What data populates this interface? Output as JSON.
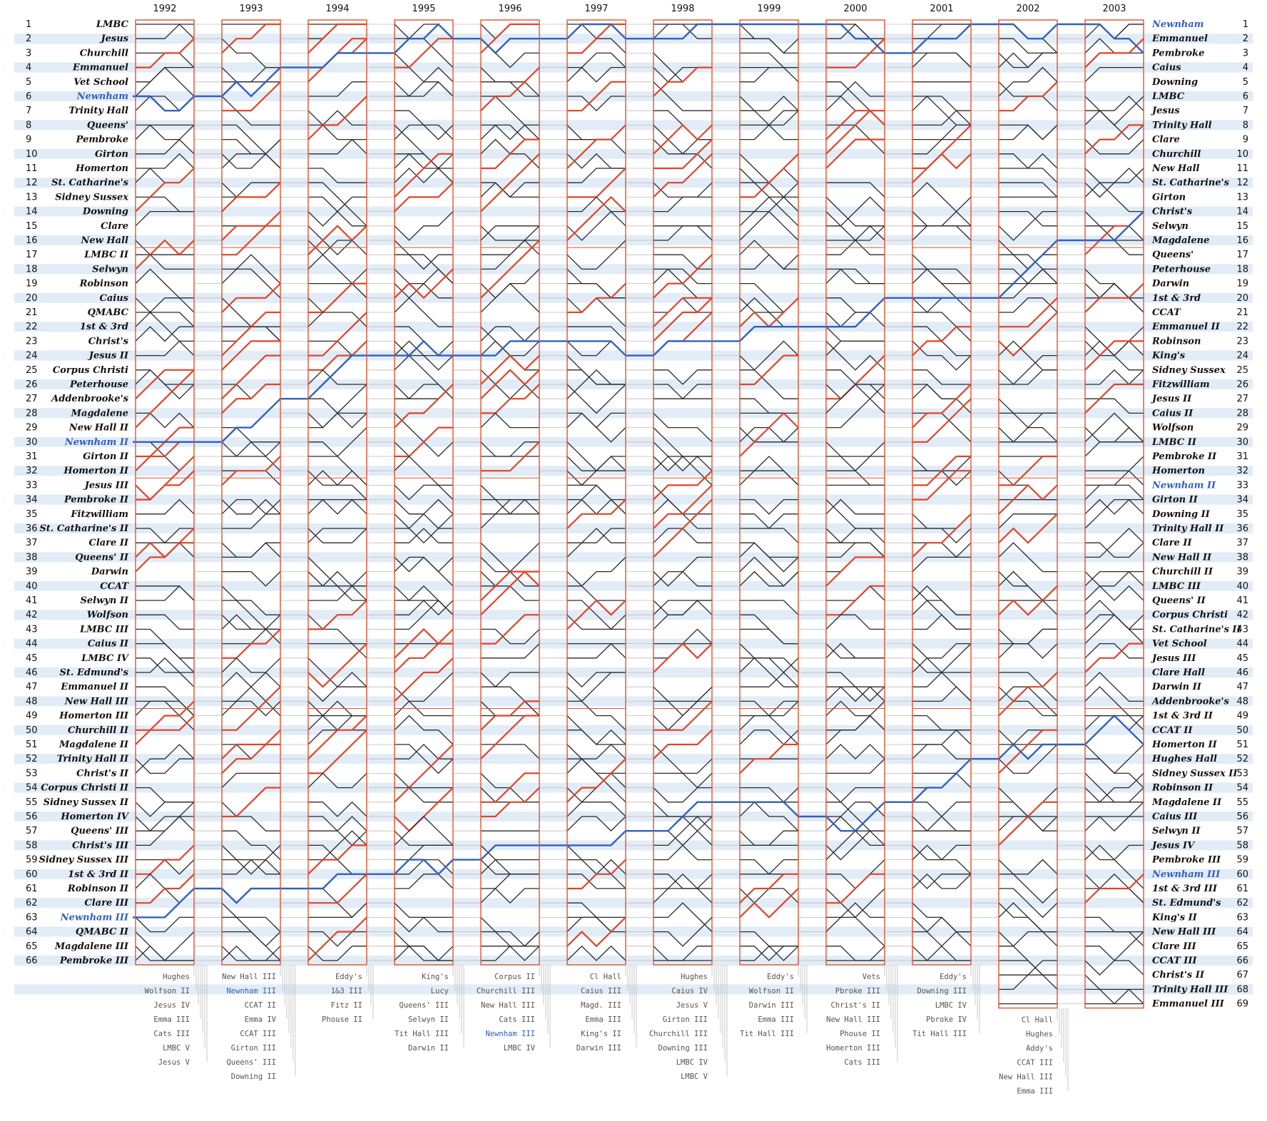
{
  "chart_data": {
    "type": "line",
    "years": [
      "1992",
      "1993",
      "1994",
      "1995",
      "1996",
      "1997",
      "1998",
      "1999",
      "2000",
      "2001",
      "2002",
      "2003"
    ],
    "left_positions": 66,
    "right_positions": 69,
    "left_labels": [
      "LMBC",
      "Jesus",
      "Churchill",
      "Emmanuel",
      "Vet School",
      "Newnham",
      "Trinity Hall",
      "Queens'",
      "Pembroke",
      "Girton",
      "Homerton",
      "St. Catharine's",
      "Sidney Sussex",
      "Downing",
      "Clare",
      "New Hall",
      "LMBC II",
      "Selwyn",
      "Robinson",
      "Caius",
      "QMABC",
      "1st & 3rd",
      "Christ's",
      "Jesus II",
      "Corpus Christi",
      "Peterhouse",
      "Addenbrooke's",
      "Magdalene",
      "New Hall II",
      "Newnham II",
      "Girton II",
      "Homerton II",
      "Jesus III",
      "Pembroke II",
      "Fitzwilliam",
      "St. Catharine's II",
      "Clare II",
      "Queens' II",
      "Darwin",
      "CCAT",
      "Selwyn II",
      "Wolfson",
      "LMBC III",
      "Caius II",
      "LMBC IV",
      "St. Edmund's",
      "Emmanuel II",
      "New Hall III",
      "Homerton III",
      "Churchill II",
      "Magdalene II",
      "Trinity Hall II",
      "Christ's II",
      "Corpus Christi II",
      "Sidney Sussex II",
      "Homerton IV",
      "Queens' III",
      "Christ's III",
      "Sidney Sussex III",
      "1st & 3rd II",
      "Robinson II",
      "Clare III",
      "Newnham III",
      "QMABC II",
      "Magdalene III",
      "Pembroke III"
    ],
    "right_labels": [
      "Newnham",
      "Emmanuel",
      "Pembroke",
      "Caius",
      "Downing",
      "LMBC",
      "Jesus",
      "Trinity Hall",
      "Clare",
      "Churchill",
      "New Hall",
      "St. Catharine's",
      "Girton",
      "Christ's",
      "Selwyn",
      "Magdalene",
      "Queens'",
      "Peterhouse",
      "Darwin",
      "1st & 3rd",
      "CCAT",
      "Emmanuel II",
      "Robinson",
      "King's",
      "Sidney Sussex",
      "Fitzwilliam",
      "Jesus II",
      "Caius II",
      "Wolfson",
      "LMBC II",
      "Pembroke II",
      "Homerton",
      "Newnham II",
      "Girton II",
      "Downing II",
      "Trinity Hall II",
      "Clare II",
      "New Hall II",
      "Churchill II",
      "LMBC III",
      "Queens' II",
      "Corpus Christi",
      "St. Catharine's II",
      "Vet School",
      "Jesus III",
      "Clare Hall",
      "Darwin II",
      "Addenbrooke's",
      "1st & 3rd II",
      "CCAT II",
      "Homerton II",
      "Hughes Hall",
      "Sidney Sussex II",
      "Robinson II",
      "Magdalene II",
      "Caius III",
      "Selwyn II",
      "Jesus IV",
      "Pembroke III",
      "Newnham III",
      "1st & 3rd III",
      "St. Edmund's",
      "King's II",
      "New Hall III",
      "Clare III",
      "CCAT III",
      "Christ's II",
      "Trinity Hall III",
      "Emmanuel III"
    ],
    "highlight_left": [
      6,
      30,
      63
    ],
    "highlight_right": [
      1,
      33,
      60
    ],
    "sub_labels": [
      [
        "Hughes",
        "Wolfson II",
        "Jesus IV",
        "Emma III",
        "Cats III",
        "LMBC V",
        "Jesus V"
      ],
      [
        "New Hall III",
        "Newnham III",
        "CCAT II",
        "Emma IV",
        "CCAT III",
        "Girton III",
        "Queens' III",
        "Downing II"
      ],
      [
        "Eddy's",
        "1&3 III",
        "Fitz II",
        "Phouse II"
      ],
      [
        "King's",
        "Lucy",
        "Queens' III",
        "Selwyn II",
        "Tit Hall III",
        "Darwin II"
      ],
      [
        "Corpus II",
        "Churchill III",
        "New Hall III",
        "Cats III",
        "Newnham III",
        "LMBC IV"
      ],
      [
        "Cl Hall",
        "Caius III",
        "Magd. III",
        "Emma III",
        "King's II",
        "Darwin III"
      ],
      [
        "Hughes",
        "Caius IV",
        "Jesus V",
        "Girton III",
        "Churchill III",
        "Downing III",
        "LMBC IV",
        "LMBC V"
      ],
      [
        "Eddy's",
        "Wolfson II",
        "Darwin III",
        "Emma III",
        "Tit Hall III"
      ],
      [
        "Vets",
        "Pbroke III",
        "Christ's II",
        "New Hall III",
        "Phouse II",
        "Homerton III",
        "Cats III"
      ],
      [
        "Eddy's",
        "Downing III",
        "LMBC IV",
        "Pbroke IV",
        "Tit Hall III"
      ],
      [
        "Cl Hall",
        "Hughes",
        "Addy's",
        "CCAT III",
        "New Hall III",
        "Emma III"
      ],
      []
    ],
    "colors": {
      "line": "#2a2a2a",
      "up": "#e0442a",
      "highlight": "#3060c0",
      "frame": "#e2532e",
      "stripe": "#e2ecf6",
      "connector": "#bcbcbc"
    }
  }
}
